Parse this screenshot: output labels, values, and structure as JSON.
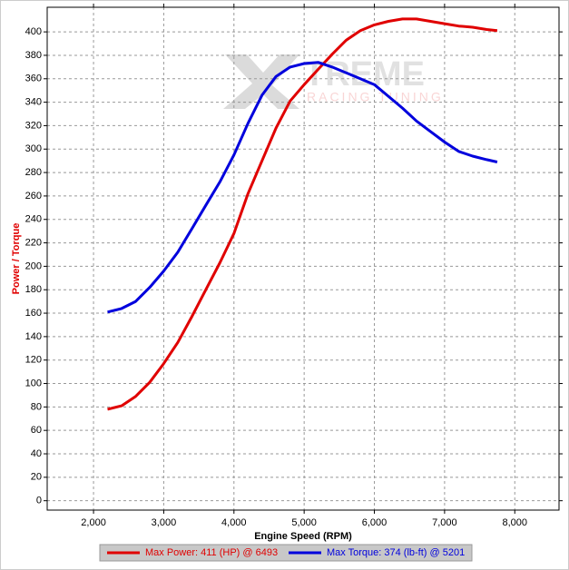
{
  "chart_data": {
    "type": "line",
    "y_label": "Power / Torque",
    "x_label": "Engine Speed (RPM)",
    "watermark": {
      "brand": "TREME",
      "tagline": "RACING TUNING"
    },
    "x": [
      2200,
      2400,
      2600,
      2800,
      3000,
      3200,
      3400,
      3600,
      3800,
      4000,
      4200,
      4400,
      4600,
      4800,
      5000,
      5200,
      5400,
      5600,
      5800,
      6000,
      6200,
      6400,
      6600,
      6800,
      7000,
      7200,
      7400,
      7600,
      7750
    ],
    "series": [
      {
        "name": "Max Power: 411 (HP) @ 6493",
        "color": "#e00000",
        "values": [
          78,
          81,
          89,
          101,
          117,
          135,
          157,
          180,
          203,
          228,
          262,
          290,
          318,
          341,
          355,
          368,
          381,
          393,
          401,
          406,
          409,
          411,
          411,
          409,
          407,
          405,
          404,
          402,
          401
        ]
      },
      {
        "name": "Max Torque: 374 (lb-ft) @ 5201",
        "color": "#0000dd",
        "values": [
          161,
          164,
          170,
          182,
          196,
          212,
          232,
          252,
          272,
          295,
          322,
          346,
          362,
          370,
          373,
          374,
          370,
          365,
          360,
          355,
          345,
          335,
          324,
          315,
          306,
          298,
          294,
          291,
          289
        ]
      }
    ],
    "xlim": [
      1340,
      8630
    ],
    "ylim": [
      -8,
      421
    ],
    "xticks": [
      {
        "value": 2000,
        "label": "2,000"
      },
      {
        "value": 3000,
        "label": "3,000"
      },
      {
        "value": 4000,
        "label": "4,000"
      },
      {
        "value": 5000,
        "label": "5,000"
      },
      {
        "value": 6000,
        "label": "6,000"
      },
      {
        "value": 7000,
        "label": "7,000"
      },
      {
        "value": 8000,
        "label": "8,000"
      }
    ],
    "yticks": [
      0,
      20,
      40,
      60,
      80,
      100,
      120,
      140,
      160,
      180,
      200,
      220,
      240,
      260,
      280,
      300,
      320,
      340,
      360,
      380,
      400
    ],
    "grid": true,
    "legend": "bottom"
  }
}
